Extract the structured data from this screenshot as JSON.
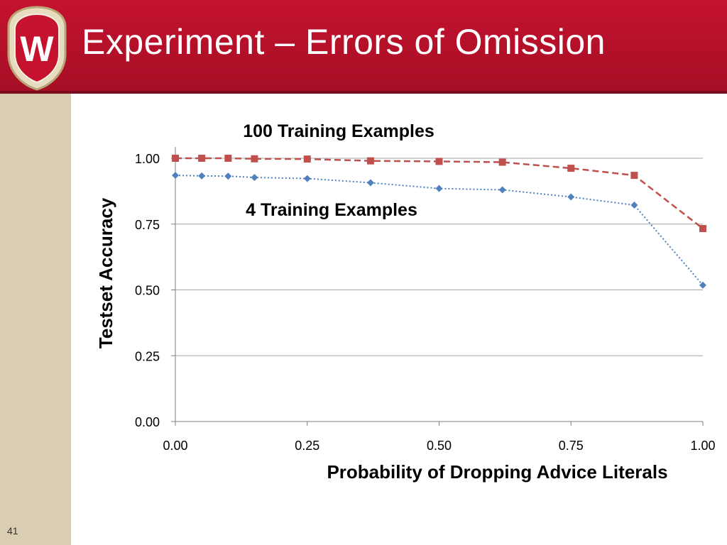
{
  "slide": {
    "title": "Experiment – Errors of Omission",
    "number": "41",
    "logo_letter": "W",
    "colors": {
      "header": "#c4122f",
      "sidebar": "#d9ceb2"
    }
  },
  "chart_data": {
    "type": "line",
    "xlabel": "Probability of Dropping Advice Literals",
    "ylabel": "Testset Accuracy",
    "xlim": [
      0,
      1
    ],
    "ylim": [
      0,
      1
    ],
    "xticks": [
      "0.00",
      "0.25",
      "0.50",
      "0.75",
      "1.00"
    ],
    "yticks": [
      "0.00",
      "0.25",
      "0.50",
      "0.75",
      "1.00"
    ],
    "grid": "horizontal",
    "series": [
      {
        "name": "100 Training Examples",
        "color": "#c0504d",
        "marker": "square",
        "line": "dashed",
        "x": [
          0.0,
          0.05,
          0.1,
          0.15,
          0.25,
          0.37,
          0.5,
          0.62,
          0.75,
          0.87,
          1.0
        ],
        "y": [
          1.0,
          1.0,
          1.0,
          0.998,
          0.997,
          0.99,
          0.988,
          0.985,
          0.962,
          0.935,
          0.733
        ]
      },
      {
        "name": "4 Training Examples",
        "color": "#4f81bd",
        "marker": "diamond",
        "line": "dotted",
        "x": [
          0.0,
          0.05,
          0.1,
          0.15,
          0.25,
          0.37,
          0.5,
          0.62,
          0.75,
          0.87,
          1.0
        ],
        "y": [
          0.935,
          0.933,
          0.932,
          0.927,
          0.923,
          0.907,
          0.885,
          0.88,
          0.853,
          0.822,
          0.518
        ]
      }
    ]
  }
}
